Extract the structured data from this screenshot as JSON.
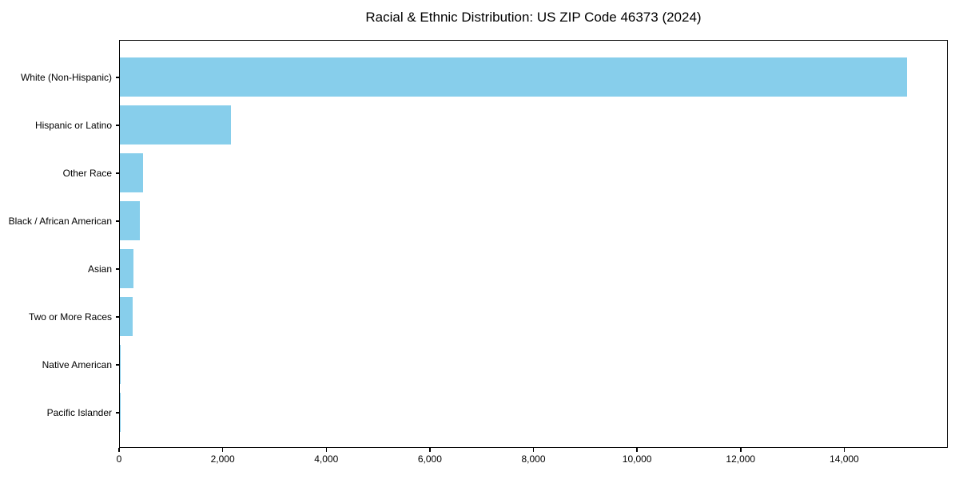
{
  "chart_data": {
    "type": "bar",
    "orientation": "horizontal",
    "title": "Racial & Ethnic Distribution: US ZIP Code 46373 (2024)",
    "categories": [
      "White (Non-Hispanic)",
      "Hispanic or Latino",
      "Other Race",
      "Black / African American",
      "Asian",
      "Two or More Races",
      "Native American",
      "Pacific Islander"
    ],
    "values": [
      15200,
      2150,
      450,
      390,
      270,
      250,
      20,
      5
    ],
    "xlabel": "",
    "ylabel": "",
    "xlim": [
      0,
      16000
    ],
    "xticks": {
      "values": [
        0,
        2000,
        4000,
        6000,
        8000,
        10000,
        12000,
        14000
      ],
      "labels": [
        "0",
        "2,000",
        "4,000",
        "6,000",
        "8,000",
        "10,000",
        "12,000",
        "14,000"
      ]
    },
    "grid": false,
    "legend_position": "none",
    "colors": {
      "bar": "#87CEEB",
      "axis": "#000000",
      "text": "#000000",
      "background": "#ffffff"
    }
  }
}
